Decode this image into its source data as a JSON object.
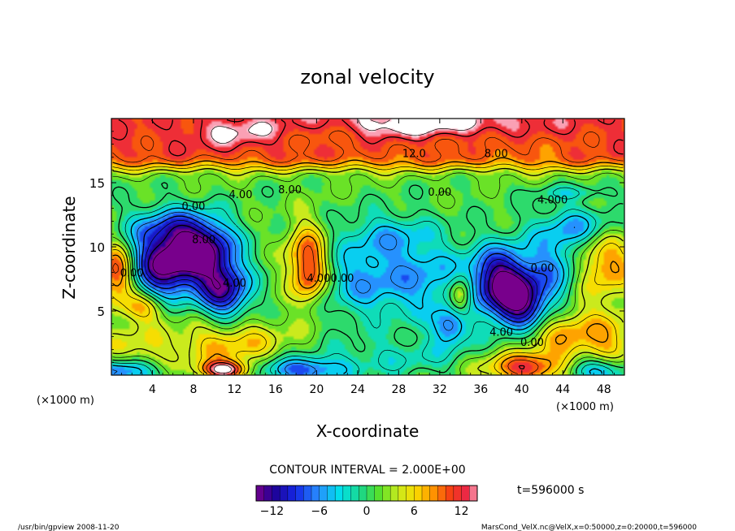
{
  "chart_data": {
    "type": "heatmap",
    "title": "zonal velocity",
    "xlabel": "X-coordinate",
    "ylabel": "Z-coordinate",
    "x_unit": "(×1000 m)",
    "z_unit": "(×1000 m)",
    "xlim": [
      0,
      50
    ],
    "ylim": [
      0,
      20
    ],
    "x_ticks": [
      4,
      8,
      12,
      16,
      20,
      24,
      28,
      32,
      36,
      40,
      44,
      48
    ],
    "y_ticks": [
      5,
      10,
      15
    ],
    "contour_interval_text": "CONTOUR INTERVAL = 2.000E+00",
    "time_text": "t=596000 s",
    "colorbar": {
      "min": -14,
      "max": 14,
      "ticks": [
        -12,
        -6,
        0,
        6,
        12
      ]
    },
    "contour_labels": [
      {
        "text": "12.0",
        "x": 29.5,
        "z": 17.3
      },
      {
        "text": "8.00",
        "x": 37.5,
        "z": 17.3
      },
      {
        "text": "8.00",
        "x": 17.4,
        "z": 14.5
      },
      {
        "text": "4.00",
        "x": 12.6,
        "z": 14.1
      },
      {
        "text": "0.00",
        "x": 8.0,
        "z": 13.2
      },
      {
        "text": "0.00",
        "x": 32.0,
        "z": 14.3
      },
      {
        "text": "4.000",
        "x": 43.0,
        "z": 13.7
      },
      {
        "text": "8.00",
        "x": 9.0,
        "z": 10.6
      },
      {
        "text": "4.00",
        "x": 20.2,
        "z": 7.6
      },
      {
        "text": "0.00",
        "x": 22.5,
        "z": 7.6
      },
      {
        "text": "0.00",
        "x": 42.0,
        "z": 8.4
      },
      {
        "text": "4.00",
        "x": 12.0,
        "z": 7.2
      },
      {
        "text": "4.00",
        "x": 38.0,
        "z": 3.4
      },
      {
        "text": "0.00",
        "x": 41.0,
        "z": 2.6
      },
      {
        "text": "0.00",
        "x": 2.0,
        "z": 8.0
      }
    ],
    "features": [
      {
        "z0": 16.2,
        "z1": 20,
        "u": 10
      },
      {
        "x": 12,
        "z": 19,
        "sx": 3,
        "sz": 0.8,
        "u": 3
      },
      {
        "x": 31,
        "z": 19.6,
        "sx": 7,
        "sz": 0.8,
        "u": 5
      },
      {
        "x": 22,
        "z": 18.5,
        "sx": 3,
        "sz": 0.8,
        "u": -2
      },
      {
        "x": 37,
        "z": 18.2,
        "sx": 5,
        "sz": 1,
        "u": -2
      },
      {
        "x": 5,
        "z": 8.5,
        "sx": 2.2,
        "sz": 1.8,
        "u": -14
      },
      {
        "x": 9,
        "z": 9.5,
        "sx": 2.2,
        "sz": 1.6,
        "u": -14
      },
      {
        "x": 11,
        "z": 6.5,
        "sx": 1.8,
        "sz": 1.5,
        "u": -12
      },
      {
        "x": 6,
        "z": 11.5,
        "sx": 3,
        "sz": 1.2,
        "u": -7
      },
      {
        "x": 38,
        "z": 7.5,
        "sx": 2.2,
        "sz": 1.8,
        "u": -14
      },
      {
        "x": 40,
        "z": 5.5,
        "sx": 2,
        "sz": 1.4,
        "u": -12
      },
      {
        "x": 46,
        "z": 11.5,
        "sx": 3,
        "sz": 1.2,
        "u": -7
      },
      {
        "x": 43.5,
        "z": 8.5,
        "sx": 2,
        "sz": 1.8,
        "u": -6
      },
      {
        "x": 24.5,
        "z": 7.5,
        "sx": 2.8,
        "sz": 2.2,
        "u": -6
      },
      {
        "x": 30.5,
        "z": 7.5,
        "sx": 2.8,
        "sz": 2.2,
        "u": -6
      },
      {
        "x": 27,
        "z": 11,
        "sx": 3,
        "sz": 1.2,
        "u": -4
      },
      {
        "x": 33,
        "z": 3.8,
        "sx": 1.2,
        "sz": 1,
        "u": -8
      },
      {
        "x": 19,
        "z": 9,
        "sx": 1.4,
        "sz": 2,
        "u": 9
      },
      {
        "x": 19.5,
        "z": 7.5,
        "sx": 1,
        "sz": 1.4,
        "u": 4
      },
      {
        "x": 34,
        "z": 6.2,
        "sx": 0.8,
        "sz": 1,
        "u": 8
      },
      {
        "x": 48,
        "z": 9,
        "sx": 2.2,
        "sz": 2.2,
        "u": 8
      },
      {
        "x": 0.5,
        "z": 8,
        "sx": 1.2,
        "sz": 1.5,
        "u": 11
      },
      {
        "x": 3,
        "z": 5.3,
        "sx": 1.6,
        "sz": 0.8,
        "u": 7
      },
      {
        "x": 11.5,
        "z": 2.4,
        "sx": 4,
        "sz": 1.4,
        "u": 6
      },
      {
        "x": 44,
        "z": 3.2,
        "sx": 2.5,
        "sz": 1.5,
        "u": 6
      },
      {
        "x": 48.5,
        "z": 2.6,
        "sx": 2,
        "sz": 1.5,
        "u": 5
      },
      {
        "x": 2,
        "z": 1.8,
        "sx": 2.5,
        "sz": 1.5,
        "u": 4
      },
      {
        "x": 1,
        "z": 0.3,
        "sx": 2.5,
        "sz": 0.7,
        "u": -10
      },
      {
        "x": 11,
        "z": 0.4,
        "sx": 1.6,
        "sz": 0.5,
        "u": 13
      },
      {
        "x": 18.5,
        "z": 0.4,
        "sx": 3,
        "sz": 0.7,
        "u": -9
      },
      {
        "x": 40.5,
        "z": 0.6,
        "sx": 3,
        "sz": 0.8,
        "u": 11
      },
      {
        "x": 47,
        "z": 0.4,
        "sx": 2.5,
        "sz": 0.7,
        "u": -8
      },
      {
        "x": 28,
        "z": 1.4,
        "sx": 6,
        "sz": 1,
        "u": -3
      },
      {
        "x": 45,
        "z": 14.2,
        "sx": 3,
        "sz": 0.4,
        "u": -3
      }
    ]
  },
  "footer": {
    "left": "/usr/bin/gpview  2008-11-20",
    "right": "MarsCond_VelX.nc@VelX,x=0:50000,z=0:20000,t=596000"
  }
}
